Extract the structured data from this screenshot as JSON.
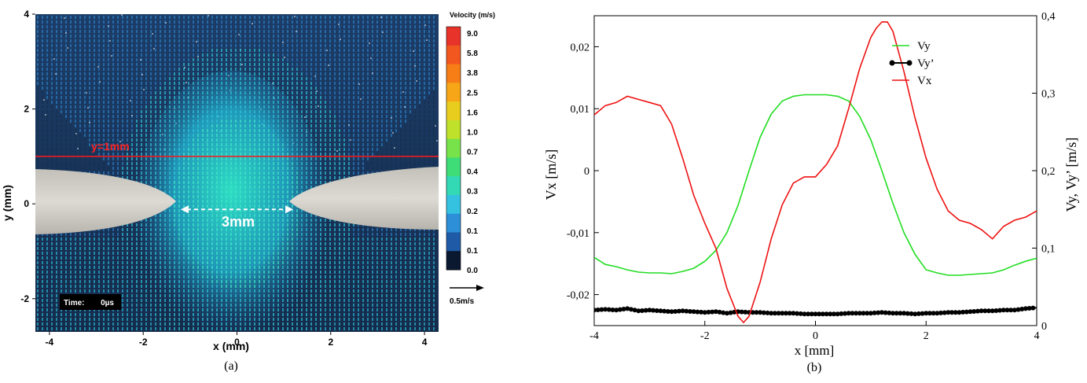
{
  "chart_data": [
    {
      "type": "heatmap",
      "panel_label": "(a)",
      "xlabel": "x (mm)",
      "ylabel": "y (mm)",
      "xlim": [
        -4.3,
        4.3
      ],
      "ylim": [
        -2.7,
        4.0
      ],
      "x_ticks": [
        -4,
        -2,
        0,
        2,
        4
      ],
      "y_ticks": [
        -2,
        0,
        2,
        4
      ],
      "colorbar": {
        "title": "Velocity (m/s)",
        "labels": [
          "9.0",
          "5.8",
          "3.8",
          "2.5",
          "1.6",
          "1.0",
          "0.7",
          "0.4",
          "0.3",
          "0.2",
          "0.1",
          "0.1",
          "0.0"
        ],
        "colors": [
          "#e8332a",
          "#f2571f",
          "#f77d16",
          "#f7a617",
          "#e9cd1e",
          "#bfe12a",
          "#78e24a",
          "#3edd78",
          "#33d8b4",
          "#35c2e0",
          "#2c8fd8",
          "#1f5aa6",
          "#0a1830"
        ]
      },
      "reference_arrow": "0.5m/s",
      "time_label": "Time:",
      "time_value": "0µs",
      "line": {
        "y": 1,
        "label": "y=1mm",
        "color": "#ff1a1a"
      },
      "gap_label": "3mm",
      "gap_x": [
        -1.2,
        1.2
      ]
    },
    {
      "type": "line",
      "panel_label": "(b)",
      "xlabel": "x [mm]",
      "ylabel": "Vx  [m/s]",
      "ylabel_right": "Vy, Vy’ [m/s]",
      "xlim": [
        -4,
        4
      ],
      "ylim": [
        -0.025,
        0.025
      ],
      "ylim_right": [
        0,
        0.4
      ],
      "x_ticks": [
        -4,
        -2,
        0,
        2,
        4
      ],
      "y_ticks": [
        0.02,
        0.01,
        0,
        -0.01,
        -0.02
      ],
      "y_tick_labels": [
        "0,02",
        "0,01",
        "0",
        "-0,01",
        "-0,02"
      ],
      "y_ticks_right": [
        0.4,
        0.3,
        0.2,
        0.1,
        0
      ],
      "y_tick_labels_right": [
        "0,4",
        "0,3",
        "0,2",
        "0,1",
        "0"
      ],
      "legend_position": "top-right",
      "series": [
        {
          "name": "Vy",
          "axis": "right",
          "color": "#22dd22",
          "x": [
            -4,
            -3.8,
            -3.6,
            -3.4,
            -3.2,
            -3.0,
            -2.8,
            -2.6,
            -2.4,
            -2.2,
            -2.0,
            -1.8,
            -1.6,
            -1.4,
            -1.2,
            -1.0,
            -0.8,
            -0.6,
            -0.4,
            -0.2,
            0,
            0.2,
            0.4,
            0.6,
            0.8,
            1.0,
            1.2,
            1.4,
            1.6,
            1.8,
            2.0,
            2.2,
            2.4,
            2.6,
            2.8,
            3.0,
            3.2,
            3.4,
            3.6,
            3.8,
            4.0
          ],
          "values": [
            0.088,
            0.079,
            0.076,
            0.072,
            0.069,
            0.068,
            0.068,
            0.067,
            0.07,
            0.074,
            0.083,
            0.097,
            0.12,
            0.155,
            0.2,
            0.243,
            0.273,
            0.29,
            0.296,
            0.298,
            0.298,
            0.298,
            0.296,
            0.29,
            0.27,
            0.24,
            0.2,
            0.158,
            0.12,
            0.092,
            0.072,
            0.068,
            0.065,
            0.065,
            0.066,
            0.067,
            0.068,
            0.072,
            0.078,
            0.083,
            0.087
          ]
        },
        {
          "name": "Vy’",
          "axis": "right",
          "color": "#000000",
          "x": [
            -4,
            -3.8,
            -3.6,
            -3.4,
            -3.2,
            -3.0,
            -2.8,
            -2.6,
            -2.4,
            -2.2,
            -2.0,
            -1.8,
            -1.6,
            -1.4,
            -1.2,
            -1.0,
            -0.8,
            -0.6,
            -0.4,
            -0.2,
            0,
            0.2,
            0.4,
            0.6,
            0.8,
            1.0,
            1.2,
            1.4,
            1.6,
            1.8,
            2.0,
            2.2,
            2.4,
            2.6,
            2.8,
            3.0,
            3.2,
            3.4,
            3.6,
            3.8,
            4.0
          ],
          "values": [
            0.02,
            0.021,
            0.02,
            0.022,
            0.019,
            0.02,
            0.019,
            0.018,
            0.019,
            0.018,
            0.017,
            0.018,
            0.016,
            0.018,
            0.017,
            0.017,
            0.016,
            0.016,
            0.016,
            0.015,
            0.015,
            0.015,
            0.015,
            0.016,
            0.016,
            0.016,
            0.017,
            0.016,
            0.016,
            0.015,
            0.016,
            0.016,
            0.017,
            0.017,
            0.018,
            0.019,
            0.019,
            0.02,
            0.02,
            0.022,
            0.023
          ]
        },
        {
          "name": "Vx",
          "axis": "left",
          "color": "#ee1111",
          "x": [
            -4,
            -3.8,
            -3.6,
            -3.4,
            -3.2,
            -3.0,
            -2.8,
            -2.6,
            -2.4,
            -2.2,
            -2.0,
            -1.8,
            -1.6,
            -1.4,
            -1.3,
            -1.2,
            -1.0,
            -0.8,
            -0.6,
            -0.4,
            -0.2,
            0,
            0.2,
            0.4,
            0.6,
            0.8,
            1.0,
            1.1,
            1.2,
            1.3,
            1.4,
            1.6,
            1.8,
            2.0,
            2.2,
            2.4,
            2.6,
            2.8,
            3.0,
            3.2,
            3.4,
            3.6,
            3.8,
            4.0
          ],
          "values": [
            0.009,
            0.0105,
            0.011,
            0.012,
            0.0115,
            0.011,
            0.0105,
            0.0075,
            0.002,
            -0.004,
            -0.0085,
            -0.0125,
            -0.019,
            -0.0235,
            -0.0245,
            -0.0235,
            -0.018,
            -0.011,
            -0.0055,
            -0.002,
            -0.001,
            -0.001,
            0.001,
            0.004,
            0.01,
            0.0165,
            0.0215,
            0.023,
            0.024,
            0.024,
            0.0225,
            0.016,
            0.0085,
            0.002,
            -0.003,
            -0.0065,
            -0.008,
            -0.0085,
            -0.0095,
            -0.011,
            -0.009,
            -0.008,
            -0.0075,
            -0.0065
          ]
        }
      ]
    }
  ]
}
